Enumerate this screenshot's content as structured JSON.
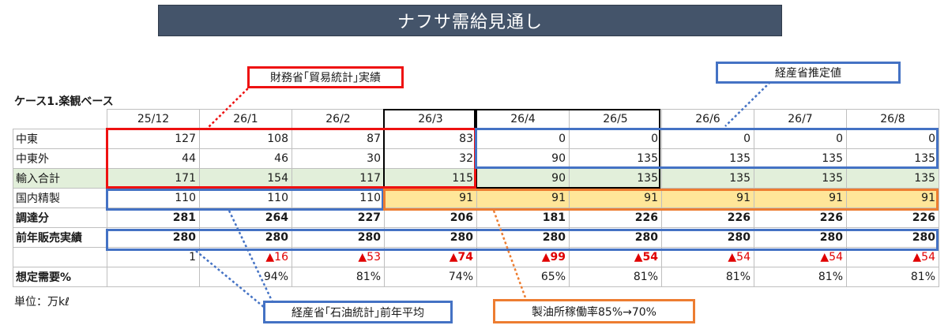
{
  "title": "ナフサ需給見通し",
  "case_label": "ケース1.楽観ベース",
  "unit_label": "単位：万kℓ",
  "callouts": {
    "mof": "財務省｢貿易統計｣実績",
    "meti_est": "経産省推定値",
    "meti_oil": "経産省｢石油統計｣前年平均",
    "refinery": "製油所稼働率85%→70%"
  },
  "columns": [
    "25/12",
    "26/1",
    "26/2",
    "26/3",
    "26/4",
    "26/5",
    "26/6",
    "26/7",
    "26/8"
  ],
  "rows": {
    "middle_east": {
      "label": "中東",
      "values": [
        "127",
        "108",
        "87",
        "83",
        "0",
        "0",
        "0",
        "0",
        "0"
      ]
    },
    "non_middle_east": {
      "label": "中東外",
      "values": [
        "44",
        "46",
        "30",
        "32",
        "90",
        "135",
        "135",
        "135",
        "135"
      ]
    },
    "import_total": {
      "label": "輸入合計",
      "values": [
        "171",
        "154",
        "117",
        "115",
        "90",
        "135",
        "135",
        "135",
        "135"
      ]
    },
    "domestic_refining": {
      "label": "国内精製",
      "values": [
        "110",
        "110",
        "110",
        "91",
        "91",
        "91",
        "91",
        "91",
        "91"
      ]
    },
    "procurement": {
      "label": "調達分",
      "values": [
        "281",
        "264",
        "227",
        "206",
        "181",
        "226",
        "226",
        "226",
        "226"
      ]
    },
    "prev_year_sales": {
      "label": "前年販売実績",
      "values": [
        "280",
        "280",
        "280",
        "280",
        "280",
        "280",
        "280",
        "280",
        "280"
      ]
    },
    "difference": {
      "label": "",
      "values": [
        "1",
        "▲16",
        "▲53",
        "▲74",
        "▲99",
        "▲54",
        "▲54",
        "▲54",
        "▲54"
      ]
    },
    "assumed_demand": {
      "label": "想定需要%",
      "values": [
        "",
        "94%",
        "81%",
        "74%",
        "65%",
        "81%",
        "81%",
        "81%",
        "81%"
      ]
    }
  },
  "colors": {
    "title_bg": "#44546a",
    "red_frame": "#ee1111",
    "blue_frame": "#4472c4",
    "orange_frame": "#ed7d31",
    "green_fill": "#e2efda",
    "orange_fill": "#ffe699",
    "negative_text": "#e00000"
  }
}
